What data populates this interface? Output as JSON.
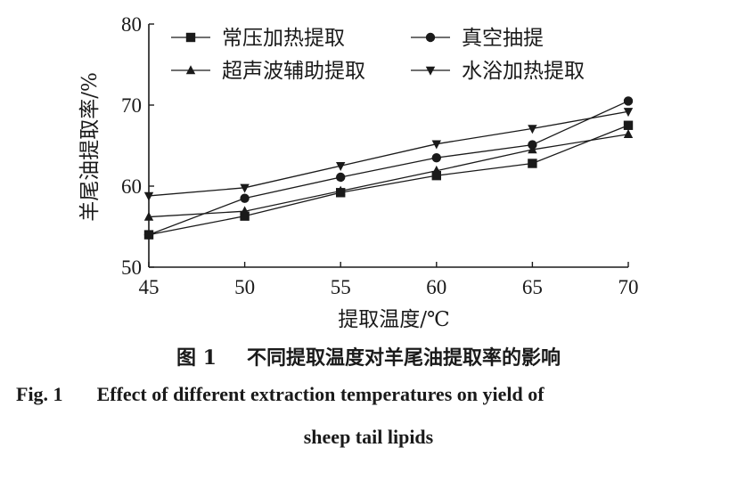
{
  "chart_data": {
    "type": "line",
    "xlabel": "提取温度/℃",
    "ylabel": "羊尾油提取率/%",
    "x": [
      45,
      50,
      55,
      60,
      65,
      70
    ],
    "xlim": [
      45,
      70
    ],
    "ylim": [
      50,
      80
    ],
    "xticks": [
      "45",
      "50",
      "55",
      "60",
      "65",
      "70"
    ],
    "yticks": [
      "50",
      "60",
      "70",
      "80"
    ],
    "grid": false,
    "legend": "top, 2 columns",
    "series": [
      {
        "name": "常压加热提取",
        "marker": "square",
        "values": [
          54.0,
          56.3,
          59.2,
          61.3,
          62.8,
          67.5
        ]
      },
      {
        "name": "真空抽提",
        "marker": "circle",
        "values": [
          54.0,
          58.5,
          61.1,
          63.5,
          65.1,
          70.5
        ]
      },
      {
        "name": "超声波辅助提取",
        "marker": "triangle-up",
        "values": [
          56.2,
          56.9,
          59.4,
          61.9,
          64.5,
          66.4
        ]
      },
      {
        "name": "水浴加热提取",
        "marker": "triangle-down",
        "values": [
          58.8,
          59.8,
          62.5,
          65.2,
          67.1,
          69.2
        ]
      }
    ]
  },
  "caption": {
    "cn_label": "图 1",
    "cn_text": "不同提取温度对羊尾油提取率的影响",
    "en_label": "Fig. 1",
    "en_text_line1": "Effect of different extraction temperatures on yield of",
    "en_text_line2": "sheep tail lipids"
  }
}
